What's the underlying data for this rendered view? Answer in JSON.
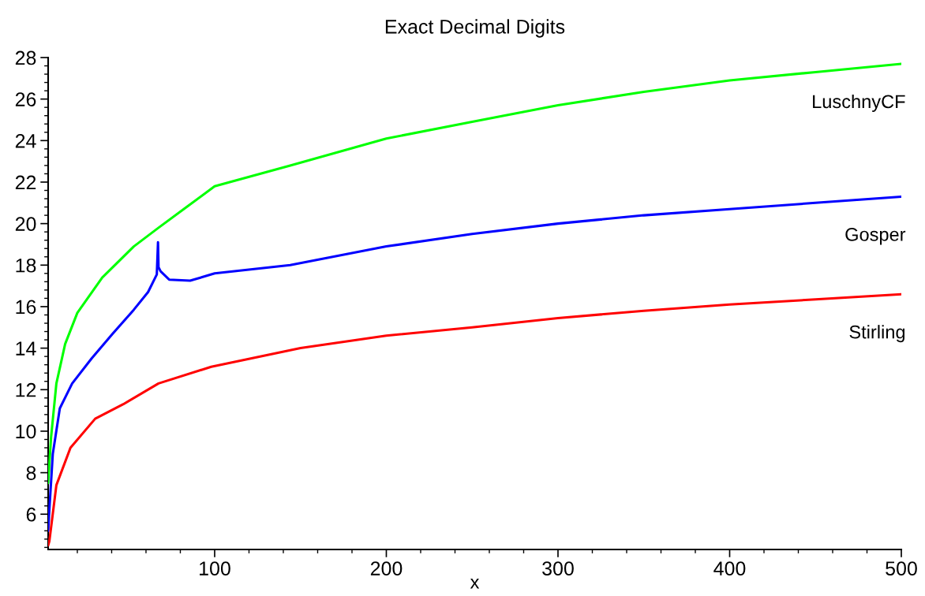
{
  "chart_data": {
    "type": "line",
    "title": "Exact Decimal Digits",
    "xlabel": "x",
    "xlim": [
      3,
      500
    ],
    "ylim": [
      4.3,
      28
    ],
    "xticks": [
      {
        "value": 20,
        "label": null
      },
      {
        "value": 40,
        "label": null
      },
      {
        "value": 60,
        "label": null
      },
      {
        "value": 80,
        "label": null
      },
      100,
      {
        "value": 120,
        "label": null
      },
      {
        "value": 140,
        "label": null
      },
      {
        "value": 160,
        "label": null
      },
      {
        "value": 180,
        "label": null
      },
      200,
      {
        "value": 220,
        "label": null
      },
      {
        "value": 240,
        "label": null
      },
      {
        "value": 260,
        "label": null
      },
      {
        "value": 280,
        "label": null
      },
      300,
      {
        "value": 320,
        "label": null
      },
      {
        "value": 340,
        "label": null
      },
      {
        "value": 360,
        "label": null
      },
      {
        "value": 380,
        "label": null
      },
      400,
      {
        "value": 420,
        "label": null
      },
      {
        "value": 440,
        "label": null
      },
      {
        "value": 460,
        "label": null
      },
      {
        "value": 480,
        "label": null
      },
      500
    ],
    "yticks": [
      {
        "value": 4.4,
        "label": null
      },
      {
        "value": 4.8,
        "label": null
      },
      {
        "value": 5.2,
        "label": null
      },
      {
        "value": 5.6,
        "label": null
      },
      6,
      {
        "value": 6.4,
        "label": null
      },
      {
        "value": 6.8,
        "label": null
      },
      {
        "value": 7.2,
        "label": null
      },
      {
        "value": 7.6,
        "label": null
      },
      8,
      {
        "value": 8.4,
        "label": null
      },
      {
        "value": 8.8,
        "label": null
      },
      {
        "value": 9.2,
        "label": null
      },
      {
        "value": 9.6,
        "label": null
      },
      10,
      {
        "value": 10.4,
        "label": null
      },
      {
        "value": 10.8,
        "label": null
      },
      {
        "value": 11.2,
        "label": null
      },
      {
        "value": 11.6,
        "label": null
      },
      12,
      {
        "value": 12.4,
        "label": null
      },
      {
        "value": 12.8,
        "label": null
      },
      {
        "value": 13.2,
        "label": null
      },
      {
        "value": 13.6,
        "label": null
      },
      14,
      {
        "value": 14.4,
        "label": null
      },
      {
        "value": 14.8,
        "label": null
      },
      {
        "value": 15.2,
        "label": null
      },
      {
        "value": 15.6,
        "label": null
      },
      16,
      {
        "value": 16.4,
        "label": null
      },
      {
        "value": 16.8,
        "label": null
      },
      {
        "value": 17.2,
        "label": null
      },
      {
        "value": 17.6,
        "label": null
      },
      18,
      {
        "value": 18.4,
        "label": null
      },
      {
        "value": 18.8,
        "label": null
      },
      {
        "value": 19.2,
        "label": null
      },
      {
        "value": 19.6,
        "label": null
      },
      20,
      {
        "value": 20.4,
        "label": null
      },
      {
        "value": 20.8,
        "label": null
      },
      {
        "value": 21.2,
        "label": null
      },
      {
        "value": 21.6,
        "label": null
      },
      22,
      {
        "value": 22.4,
        "label": null
      },
      {
        "value": 22.8,
        "label": null
      },
      {
        "value": 23.2,
        "label": null
      },
      {
        "value": 23.6,
        "label": null
      },
      24,
      {
        "value": 24.4,
        "label": null
      },
      {
        "value": 24.8,
        "label": null
      },
      {
        "value": 25.2,
        "label": null
      },
      {
        "value": 25.6,
        "label": null
      },
      26,
      {
        "value": 26.4,
        "label": null
      },
      {
        "value": 26.8,
        "label": null
      },
      {
        "value": 27.2,
        "label": null
      },
      {
        "value": 27.6,
        "label": null
      },
      28
    ],
    "grid": false,
    "legend": false,
    "marker": "none",
    "line_style": "solid",
    "series": [
      {
        "name": "LuschnyCF",
        "color": "#00ff00",
        "x": [
          3,
          4.7,
          7.8,
          12.9,
          20,
          34.5,
          52.9,
          67.3,
          83.7,
          100,
          144,
          200,
          250,
          300,
          350,
          400,
          450,
          500
        ],
        "values": [
          7.5,
          9.7,
          12.3,
          14.2,
          15.7,
          17.4,
          18.9,
          19.8,
          20.8,
          21.8,
          22.8,
          24.1,
          24.9,
          25.7,
          26.35,
          26.9,
          27.3,
          27.7
        ]
      },
      {
        "name": "Gosper",
        "color": "#0000ff",
        "x": [
          3,
          3.7,
          5.7,
          9.8,
          17,
          28.3,
          40.6,
          52.9,
          61.2,
          66.3,
          67,
          67.3,
          68.5,
          73.5,
          85.7,
          100,
          144,
          200,
          250,
          300,
          350,
          400,
          450,
          500
        ],
        "values": [
          5.2,
          6.2,
          8.9,
          11.1,
          12.3,
          13.5,
          14.7,
          15.85,
          16.7,
          17.55,
          19.1,
          17.9,
          17.7,
          17.3,
          17.25,
          17.6,
          18.0,
          18.9,
          19.5,
          20.0,
          20.4,
          20.7,
          21.0,
          21.3
        ]
      },
      {
        "name": "Stirling",
        "color": "#ff0000",
        "x": [
          3,
          3.7,
          7.8,
          16,
          30.4,
          46.8,
          67.3,
          98,
          150,
          200,
          250,
          300,
          350,
          400,
          450,
          500
        ],
        "values": [
          4.5,
          4.7,
          7.4,
          9.2,
          10.6,
          11.3,
          12.3,
          13.1,
          14.0,
          14.6,
          15.0,
          15.45,
          15.8,
          16.1,
          16.35,
          16.6
        ]
      }
    ]
  }
}
